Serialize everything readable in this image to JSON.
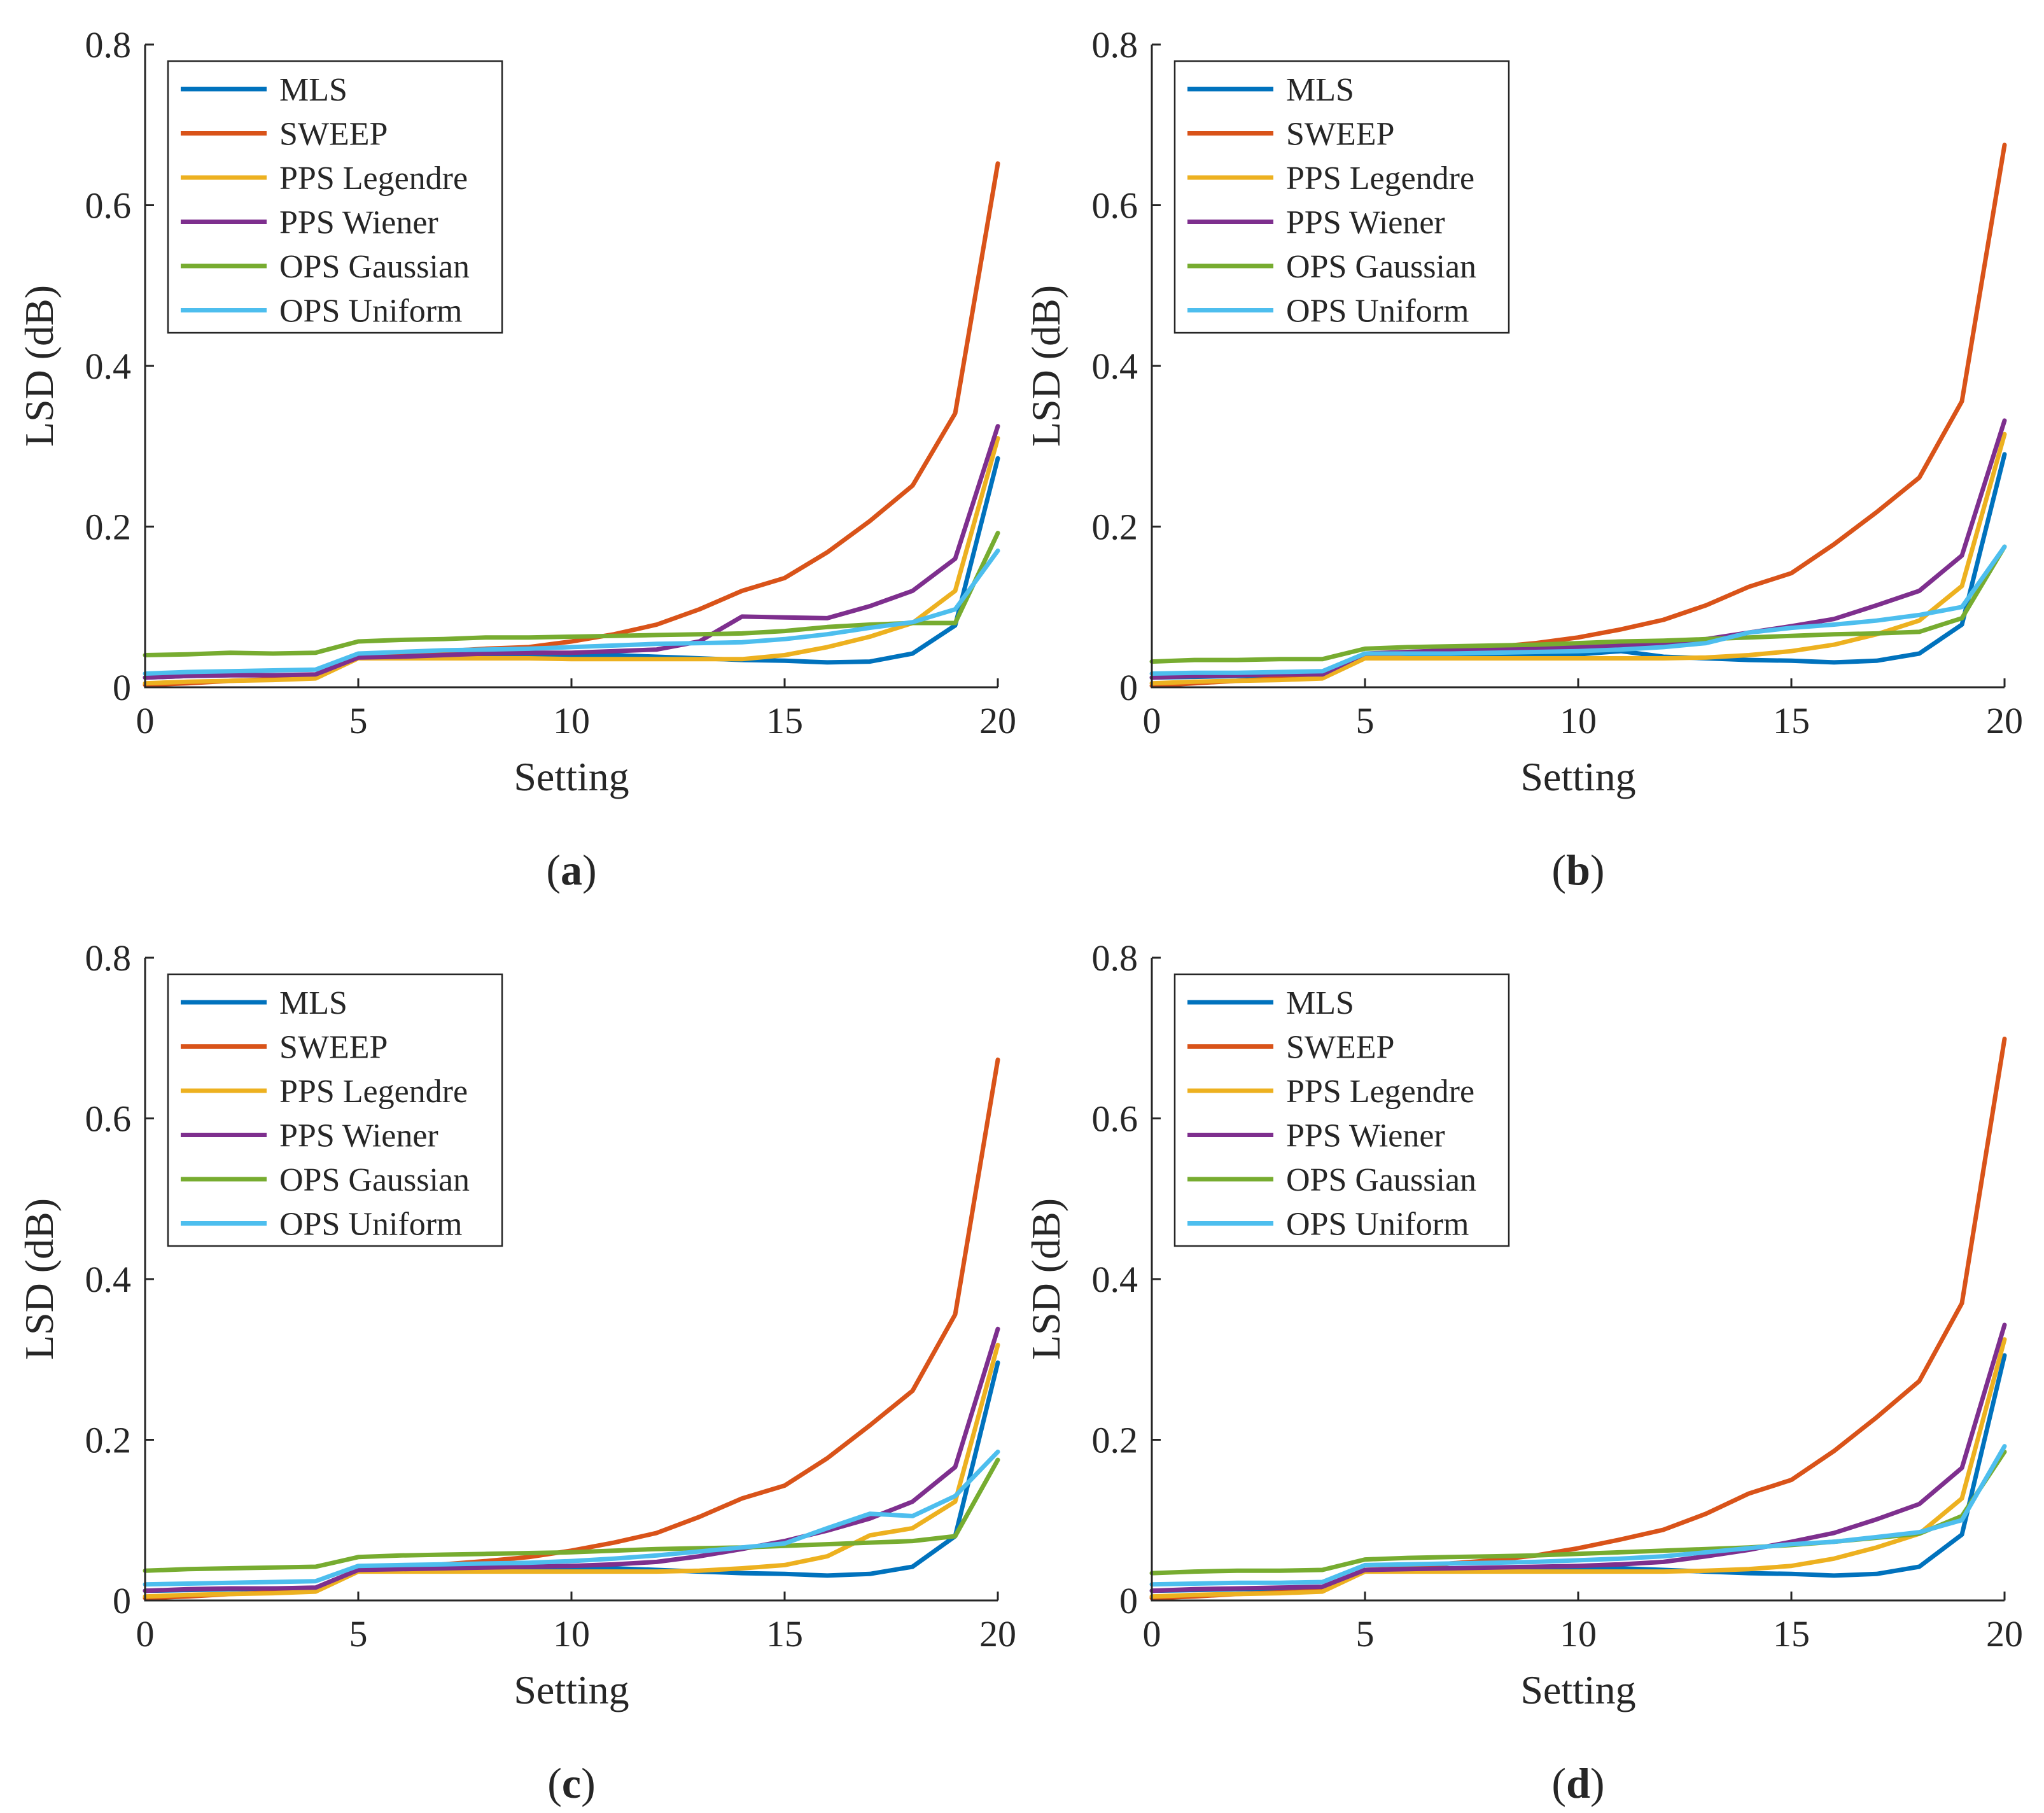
{
  "figure": {
    "series_colors": {
      "MLS": "#0072BD",
      "SWEEP": "#D95319",
      "PPS Legendre": "#EDB120",
      "PPS Wiener": "#7E2F8E",
      "OPS Gaussian": "#77AC30",
      "OPS Uniform": "#4DBEEE"
    }
  },
  "chart_data": [
    {
      "type": "line",
      "panel_label": "a",
      "title": "",
      "xlabel": "Setting",
      "ylabel": "LSD (dB)",
      "xlim": [
        0,
        20
      ],
      "ylim": [
        0,
        0.8
      ],
      "xticks": [
        "0",
        "5",
        "10",
        "15",
        "20"
      ],
      "yticks": [
        "0",
        "0.2",
        "0.4",
        "0.6",
        "0.8"
      ],
      "legend_position": "top-left",
      "x": [
        0,
        1,
        2,
        3,
        4,
        5,
        6,
        7,
        8,
        9,
        10,
        11,
        12,
        13,
        14,
        15,
        16,
        17,
        18,
        19,
        20
      ],
      "series": [
        {
          "name": "MLS",
          "values": [
            0.012,
            0.014,
            0.015,
            0.015,
            0.015,
            0.038,
            0.039,
            0.04,
            0.04,
            0.04,
            0.04,
            0.04,
            0.038,
            0.036,
            0.034,
            0.033,
            0.031,
            0.032,
            0.042,
            0.077,
            0.285
          ]
        },
        {
          "name": "SWEEP",
          "values": [
            0.003,
            0.005,
            0.008,
            0.01,
            0.012,
            0.038,
            0.04,
            0.045,
            0.048,
            0.05,
            0.057,
            0.066,
            0.078,
            0.097,
            0.12,
            0.136,
            0.168,
            0.207,
            0.251,
            0.341,
            0.652
          ]
        },
        {
          "name": "PPS Legendre",
          "values": [
            0.005,
            0.007,
            0.008,
            0.009,
            0.011,
            0.036,
            0.036,
            0.036,
            0.036,
            0.036,
            0.035,
            0.035,
            0.035,
            0.035,
            0.035,
            0.04,
            0.05,
            0.063,
            0.08,
            0.12,
            0.31
          ]
        },
        {
          "name": "PPS Wiener",
          "values": [
            0.012,
            0.014,
            0.015,
            0.015,
            0.016,
            0.037,
            0.038,
            0.04,
            0.042,
            0.043,
            0.043,
            0.045,
            0.047,
            0.057,
            0.088,
            0.087,
            0.086,
            0.101,
            0.12,
            0.16,
            0.325
          ]
        },
        {
          "name": "OPS Gaussian",
          "values": [
            0.04,
            0.041,
            0.043,
            0.042,
            0.043,
            0.057,
            0.059,
            0.06,
            0.062,
            0.062,
            0.063,
            0.064,
            0.065,
            0.066,
            0.067,
            0.07,
            0.075,
            0.078,
            0.08,
            0.08,
            0.192
          ]
        },
        {
          "name": "OPS Uniform",
          "values": [
            0.017,
            0.019,
            0.02,
            0.021,
            0.022,
            0.042,
            0.044,
            0.046,
            0.047,
            0.048,
            0.05,
            0.052,
            0.054,
            0.055,
            0.056,
            0.06,
            0.066,
            0.074,
            0.081,
            0.097,
            0.17
          ]
        }
      ]
    },
    {
      "type": "line",
      "panel_label": "b",
      "title": "",
      "xlabel": "Setting",
      "ylabel": "LSD (dB)",
      "xlim": [
        0,
        20
      ],
      "ylim": [
        0,
        0.8
      ],
      "xticks": [
        "0",
        "5",
        "10",
        "15",
        "20"
      ],
      "yticks": [
        "0",
        "0.2",
        "0.4",
        "0.6",
        "0.8"
      ],
      "legend_position": "top-left",
      "x": [
        0,
        1,
        2,
        3,
        4,
        5,
        6,
        7,
        8,
        9,
        10,
        11,
        12,
        13,
        14,
        15,
        16,
        17,
        18,
        19,
        20
      ],
      "series": [
        {
          "name": "MLS",
          "values": [
            0.012,
            0.013,
            0.014,
            0.015,
            0.015,
            0.039,
            0.04,
            0.04,
            0.041,
            0.041,
            0.041,
            0.045,
            0.038,
            0.036,
            0.034,
            0.033,
            0.031,
            0.033,
            0.042,
            0.078,
            0.29
          ]
        },
        {
          "name": "SWEEP",
          "values": [
            0.002,
            0.005,
            0.008,
            0.011,
            0.013,
            0.04,
            0.042,
            0.047,
            0.05,
            0.055,
            0.062,
            0.072,
            0.084,
            0.102,
            0.125,
            0.142,
            0.178,
            0.218,
            0.261,
            0.356,
            0.675
          ]
        },
        {
          "name": "PPS Legendre",
          "values": [
            0.005,
            0.007,
            0.008,
            0.009,
            0.011,
            0.036,
            0.036,
            0.036,
            0.036,
            0.036,
            0.036,
            0.036,
            0.036,
            0.037,
            0.04,
            0.045,
            0.053,
            0.066,
            0.083,
            0.126,
            0.315
          ]
        },
        {
          "name": "PPS Wiener",
          "values": [
            0.012,
            0.014,
            0.015,
            0.016,
            0.016,
            0.042,
            0.044,
            0.046,
            0.048,
            0.049,
            0.05,
            0.052,
            0.054,
            0.06,
            0.068,
            0.076,
            0.085,
            0.102,
            0.12,
            0.164,
            0.332
          ]
        },
        {
          "name": "OPS Gaussian",
          "values": [
            0.032,
            0.034,
            0.034,
            0.035,
            0.035,
            0.048,
            0.05,
            0.051,
            0.052,
            0.053,
            0.055,
            0.057,
            0.058,
            0.06,
            0.062,
            0.064,
            0.066,
            0.067,
            0.069,
            0.086,
            0.175
          ]
        },
        {
          "name": "OPS Uniform",
          "values": [
            0.017,
            0.018,
            0.018,
            0.019,
            0.02,
            0.042,
            0.042,
            0.042,
            0.043,
            0.044,
            0.045,
            0.047,
            0.05,
            0.055,
            0.068,
            0.074,
            0.078,
            0.083,
            0.09,
            0.1,
            0.175
          ]
        }
      ]
    },
    {
      "type": "line",
      "panel_label": "c",
      "title": "",
      "xlabel": "Setting",
      "ylabel": "LSD (dB)",
      "xlim": [
        0,
        20
      ],
      "ylim": [
        0,
        0.8
      ],
      "xticks": [
        "0",
        "5",
        "10",
        "15",
        "20"
      ],
      "yticks": [
        "0",
        "0.2",
        "0.4",
        "0.6",
        "0.8"
      ],
      "legend_position": "top-left",
      "x": [
        0,
        1,
        2,
        3,
        4,
        5,
        6,
        7,
        8,
        9,
        10,
        11,
        12,
        13,
        14,
        15,
        16,
        17,
        18,
        19,
        20
      ],
      "series": [
        {
          "name": "MLS",
          "values": [
            0.012,
            0.013,
            0.014,
            0.015,
            0.015,
            0.038,
            0.039,
            0.04,
            0.04,
            0.04,
            0.04,
            0.04,
            0.038,
            0.036,
            0.034,
            0.033,
            0.031,
            0.033,
            0.042,
            0.08,
            0.296
          ]
        },
        {
          "name": "SWEEP",
          "values": [
            0.003,
            0.005,
            0.008,
            0.01,
            0.012,
            0.038,
            0.04,
            0.045,
            0.049,
            0.054,
            0.062,
            0.072,
            0.084,
            0.104,
            0.127,
            0.143,
            0.177,
            0.218,
            0.261,
            0.356,
            0.673
          ]
        },
        {
          "name": "PPS Legendre",
          "values": [
            0.005,
            0.007,
            0.008,
            0.009,
            0.011,
            0.036,
            0.036,
            0.036,
            0.036,
            0.036,
            0.036,
            0.036,
            0.036,
            0.037,
            0.04,
            0.044,
            0.055,
            0.081,
            0.09,
            0.123,
            0.318
          ]
        },
        {
          "name": "PPS Wiener",
          "values": [
            0.012,
            0.014,
            0.015,
            0.015,
            0.016,
            0.038,
            0.039,
            0.04,
            0.041,
            0.042,
            0.043,
            0.045,
            0.048,
            0.055,
            0.064,
            0.074,
            0.087,
            0.102,
            0.123,
            0.166,
            0.338
          ]
        },
        {
          "name": "OPS Gaussian",
          "values": [
            0.037,
            0.039,
            0.04,
            0.041,
            0.042,
            0.054,
            0.056,
            0.057,
            0.058,
            0.059,
            0.06,
            0.062,
            0.064,
            0.065,
            0.066,
            0.068,
            0.07,
            0.072,
            0.074,
            0.08,
            0.175
          ]
        },
        {
          "name": "OPS Uniform",
          "values": [
            0.02,
            0.021,
            0.022,
            0.023,
            0.024,
            0.043,
            0.044,
            0.045,
            0.046,
            0.047,
            0.049,
            0.052,
            0.056,
            0.061,
            0.066,
            0.071,
            0.09,
            0.108,
            0.105,
            0.13,
            0.185
          ]
        }
      ]
    },
    {
      "type": "line",
      "panel_label": "d",
      "title": "",
      "xlabel": "Setting",
      "ylabel": "LSD (dB)",
      "xlim": [
        0,
        20
      ],
      "ylim": [
        0,
        0.8
      ],
      "xticks": [
        "0",
        "5",
        "10",
        "15",
        "20"
      ],
      "yticks": [
        "0",
        "0.2",
        "0.4",
        "0.6",
        "0.8"
      ],
      "legend_position": "top-left",
      "x": [
        0,
        1,
        2,
        3,
        4,
        5,
        6,
        7,
        8,
        9,
        10,
        11,
        12,
        13,
        14,
        15,
        16,
        17,
        18,
        19,
        20
      ],
      "series": [
        {
          "name": "MLS",
          "values": [
            0.012,
            0.013,
            0.014,
            0.015,
            0.015,
            0.038,
            0.039,
            0.04,
            0.04,
            0.04,
            0.04,
            0.04,
            0.038,
            0.036,
            0.034,
            0.033,
            0.031,
            0.033,
            0.042,
            0.082,
            0.305
          ]
        },
        {
          "name": "SWEEP",
          "values": [
            0.003,
            0.005,
            0.008,
            0.01,
            0.012,
            0.038,
            0.04,
            0.046,
            0.05,
            0.056,
            0.065,
            0.076,
            0.088,
            0.108,
            0.133,
            0.15,
            0.186,
            0.228,
            0.273,
            0.37,
            0.699
          ]
        },
        {
          "name": "PPS Legendre",
          "values": [
            0.005,
            0.007,
            0.008,
            0.009,
            0.011,
            0.036,
            0.036,
            0.036,
            0.036,
            0.036,
            0.036,
            0.036,
            0.036,
            0.037,
            0.039,
            0.043,
            0.052,
            0.066,
            0.083,
            0.127,
            0.325
          ]
        },
        {
          "name": "PPS Wiener",
          "values": [
            0.012,
            0.014,
            0.015,
            0.016,
            0.017,
            0.038,
            0.039,
            0.04,
            0.041,
            0.042,
            0.043,
            0.045,
            0.048,
            0.055,
            0.063,
            0.073,
            0.084,
            0.101,
            0.12,
            0.165,
            0.343
          ]
        },
        {
          "name": "OPS Gaussian",
          "values": [
            0.034,
            0.036,
            0.037,
            0.037,
            0.038,
            0.051,
            0.053,
            0.054,
            0.055,
            0.056,
            0.058,
            0.06,
            0.062,
            0.064,
            0.066,
            0.069,
            0.073,
            0.078,
            0.083,
            0.105,
            0.185
          ]
        },
        {
          "name": "OPS Uniform",
          "values": [
            0.02,
            0.021,
            0.022,
            0.022,
            0.023,
            0.044,
            0.045,
            0.046,
            0.047,
            0.048,
            0.05,
            0.052,
            0.055,
            0.06,
            0.065,
            0.07,
            0.073,
            0.079,
            0.085,
            0.1,
            0.192
          ]
        }
      ]
    }
  ]
}
